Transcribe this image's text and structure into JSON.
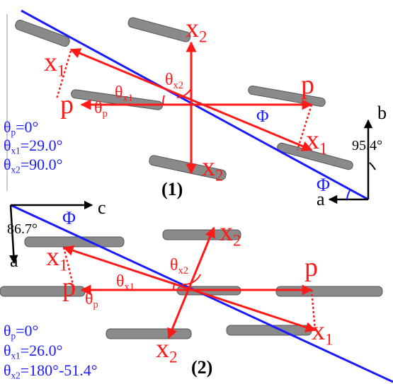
{
  "panel_1": {
    "label": "(1)",
    "vectors": [
      {
        "base": "x",
        "sub": "2"
      },
      {
        "base": "x",
        "sub": "1"
      },
      {
        "base": "p"
      },
      {
        "base": "p"
      },
      {
        "base": "x",
        "sub": "1"
      },
      {
        "base": "x",
        "sub": "2"
      }
    ],
    "angles": [
      {
        "base": "θ",
        "sub": "x1"
      },
      {
        "base": "θ",
        "sub": "x2"
      },
      {
        "base": "θ",
        "sub": "p"
      },
      {
        "base": "Φ"
      }
    ],
    "equations": [
      {
        "base": "θ",
        "sub": "p",
        "rest": "=0°"
      },
      {
        "base": "θ",
        "sub": "x1",
        "rest": "=29.0°"
      },
      {
        "base": "θ",
        "sub": "x2",
        "rest": "=90.0°"
      }
    ],
    "axes": {
      "labels": [
        {
          "base": "b"
        },
        {
          "base": "a"
        }
      ],
      "angle": {
        "base": "95.4°"
      },
      "phi": {
        "base": "Φ"
      }
    }
  },
  "panel_2": {
    "label": "(2)",
    "vectors": [
      {
        "base": "x",
        "sub": "2"
      },
      {
        "base": "x",
        "sub": "1"
      },
      {
        "base": "p"
      },
      {
        "base": "p"
      },
      {
        "base": "x",
        "sub": "1"
      },
      {
        "base": "x",
        "sub": "2"
      }
    ],
    "angles": [
      {
        "base": "θ",
        "sub": "x1"
      },
      {
        "base": "θ",
        "sub": "x2"
      },
      {
        "base": "θ",
        "sub": "p"
      }
    ],
    "equations": [
      {
        "base": "θ",
        "sub": "p",
        "rest": "=0°"
      },
      {
        "base": "θ",
        "sub": "x1",
        "rest": "=26.0°"
      },
      {
        "base": "θ",
        "sub": "x2",
        "rest": "=180°-51.4°"
      }
    ],
    "axes": {
      "labels": [
        {
          "base": "c"
        },
        {
          "base": "a"
        }
      ],
      "angle": {
        "base": "86.7°"
      },
      "phi": {
        "base": "Φ"
      }
    }
  }
}
